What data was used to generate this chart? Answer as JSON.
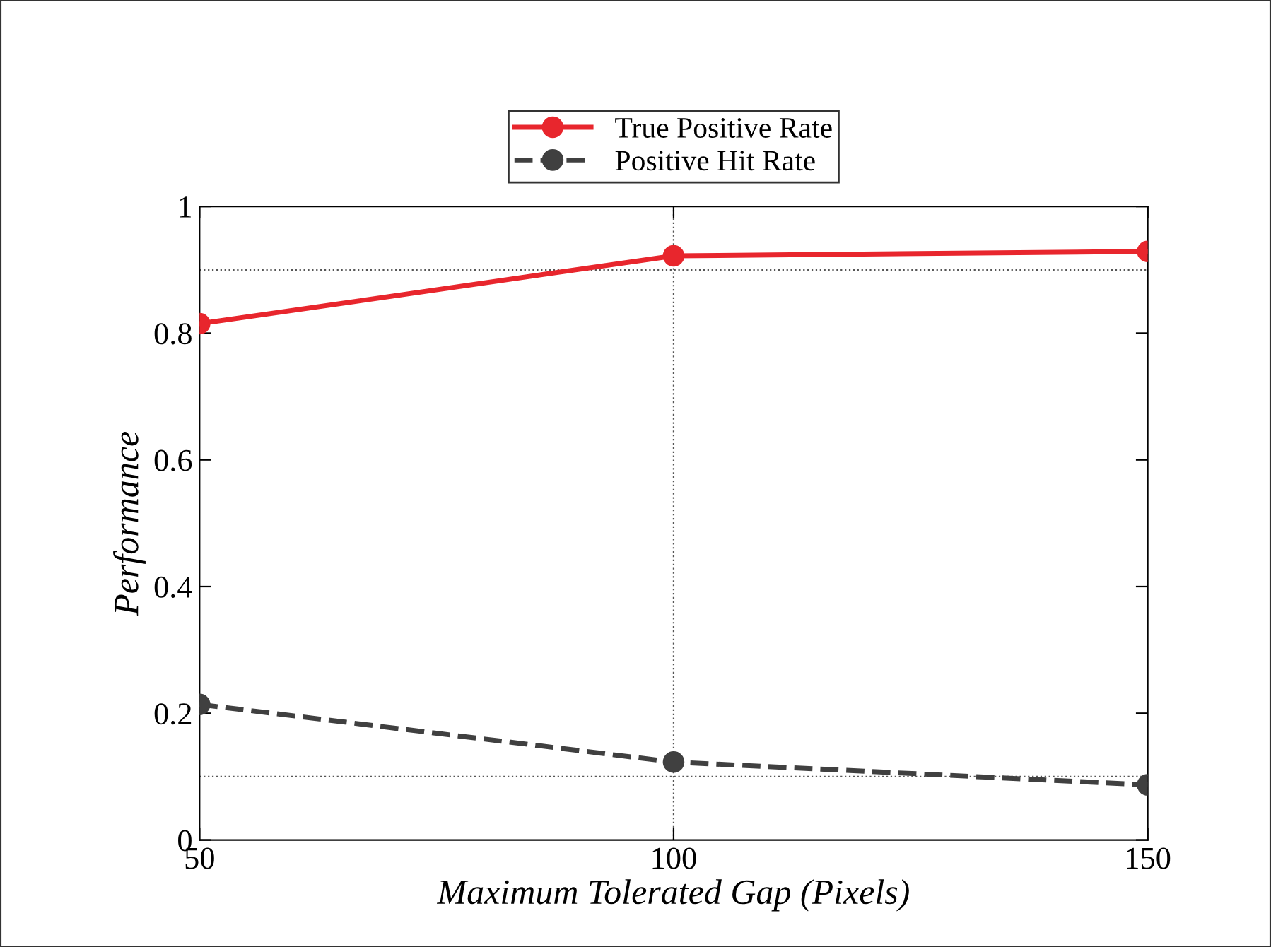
{
  "chart_data": {
    "type": "line",
    "xlabel": "Maximum Tolerated Gap (Pixels)",
    "ylabel": "Performance",
    "x": [
      50,
      100,
      150
    ],
    "series": [
      {
        "name": "True Positive Rate",
        "color": "#e8262d",
        "values": [
          0.815,
          0.922,
          0.929
        ],
        "line_style": "solid"
      },
      {
        "name": "Positive Hit Rate",
        "color": "#404040",
        "values": [
          0.214,
          0.123,
          0.087
        ],
        "line_style": "dashed"
      }
    ],
    "xlim": [
      50,
      150
    ],
    "xticks": [
      50,
      100,
      150
    ],
    "ylim": [
      0,
      1
    ],
    "yticks": [
      0,
      0.2,
      0.4,
      0.6,
      0.8,
      1
    ],
    "ref_lines": [
      {
        "axis": "y",
        "value": 0.9,
        "line_style": "dotted",
        "color": "#555555"
      },
      {
        "axis": "y",
        "value": 0.1,
        "line_style": "dotted",
        "color": "#555555"
      },
      {
        "axis": "x",
        "value": 100,
        "line_style": "dotted",
        "color": "#555555"
      }
    ],
    "marker": "circle",
    "grid": false,
    "legend": "top"
  }
}
